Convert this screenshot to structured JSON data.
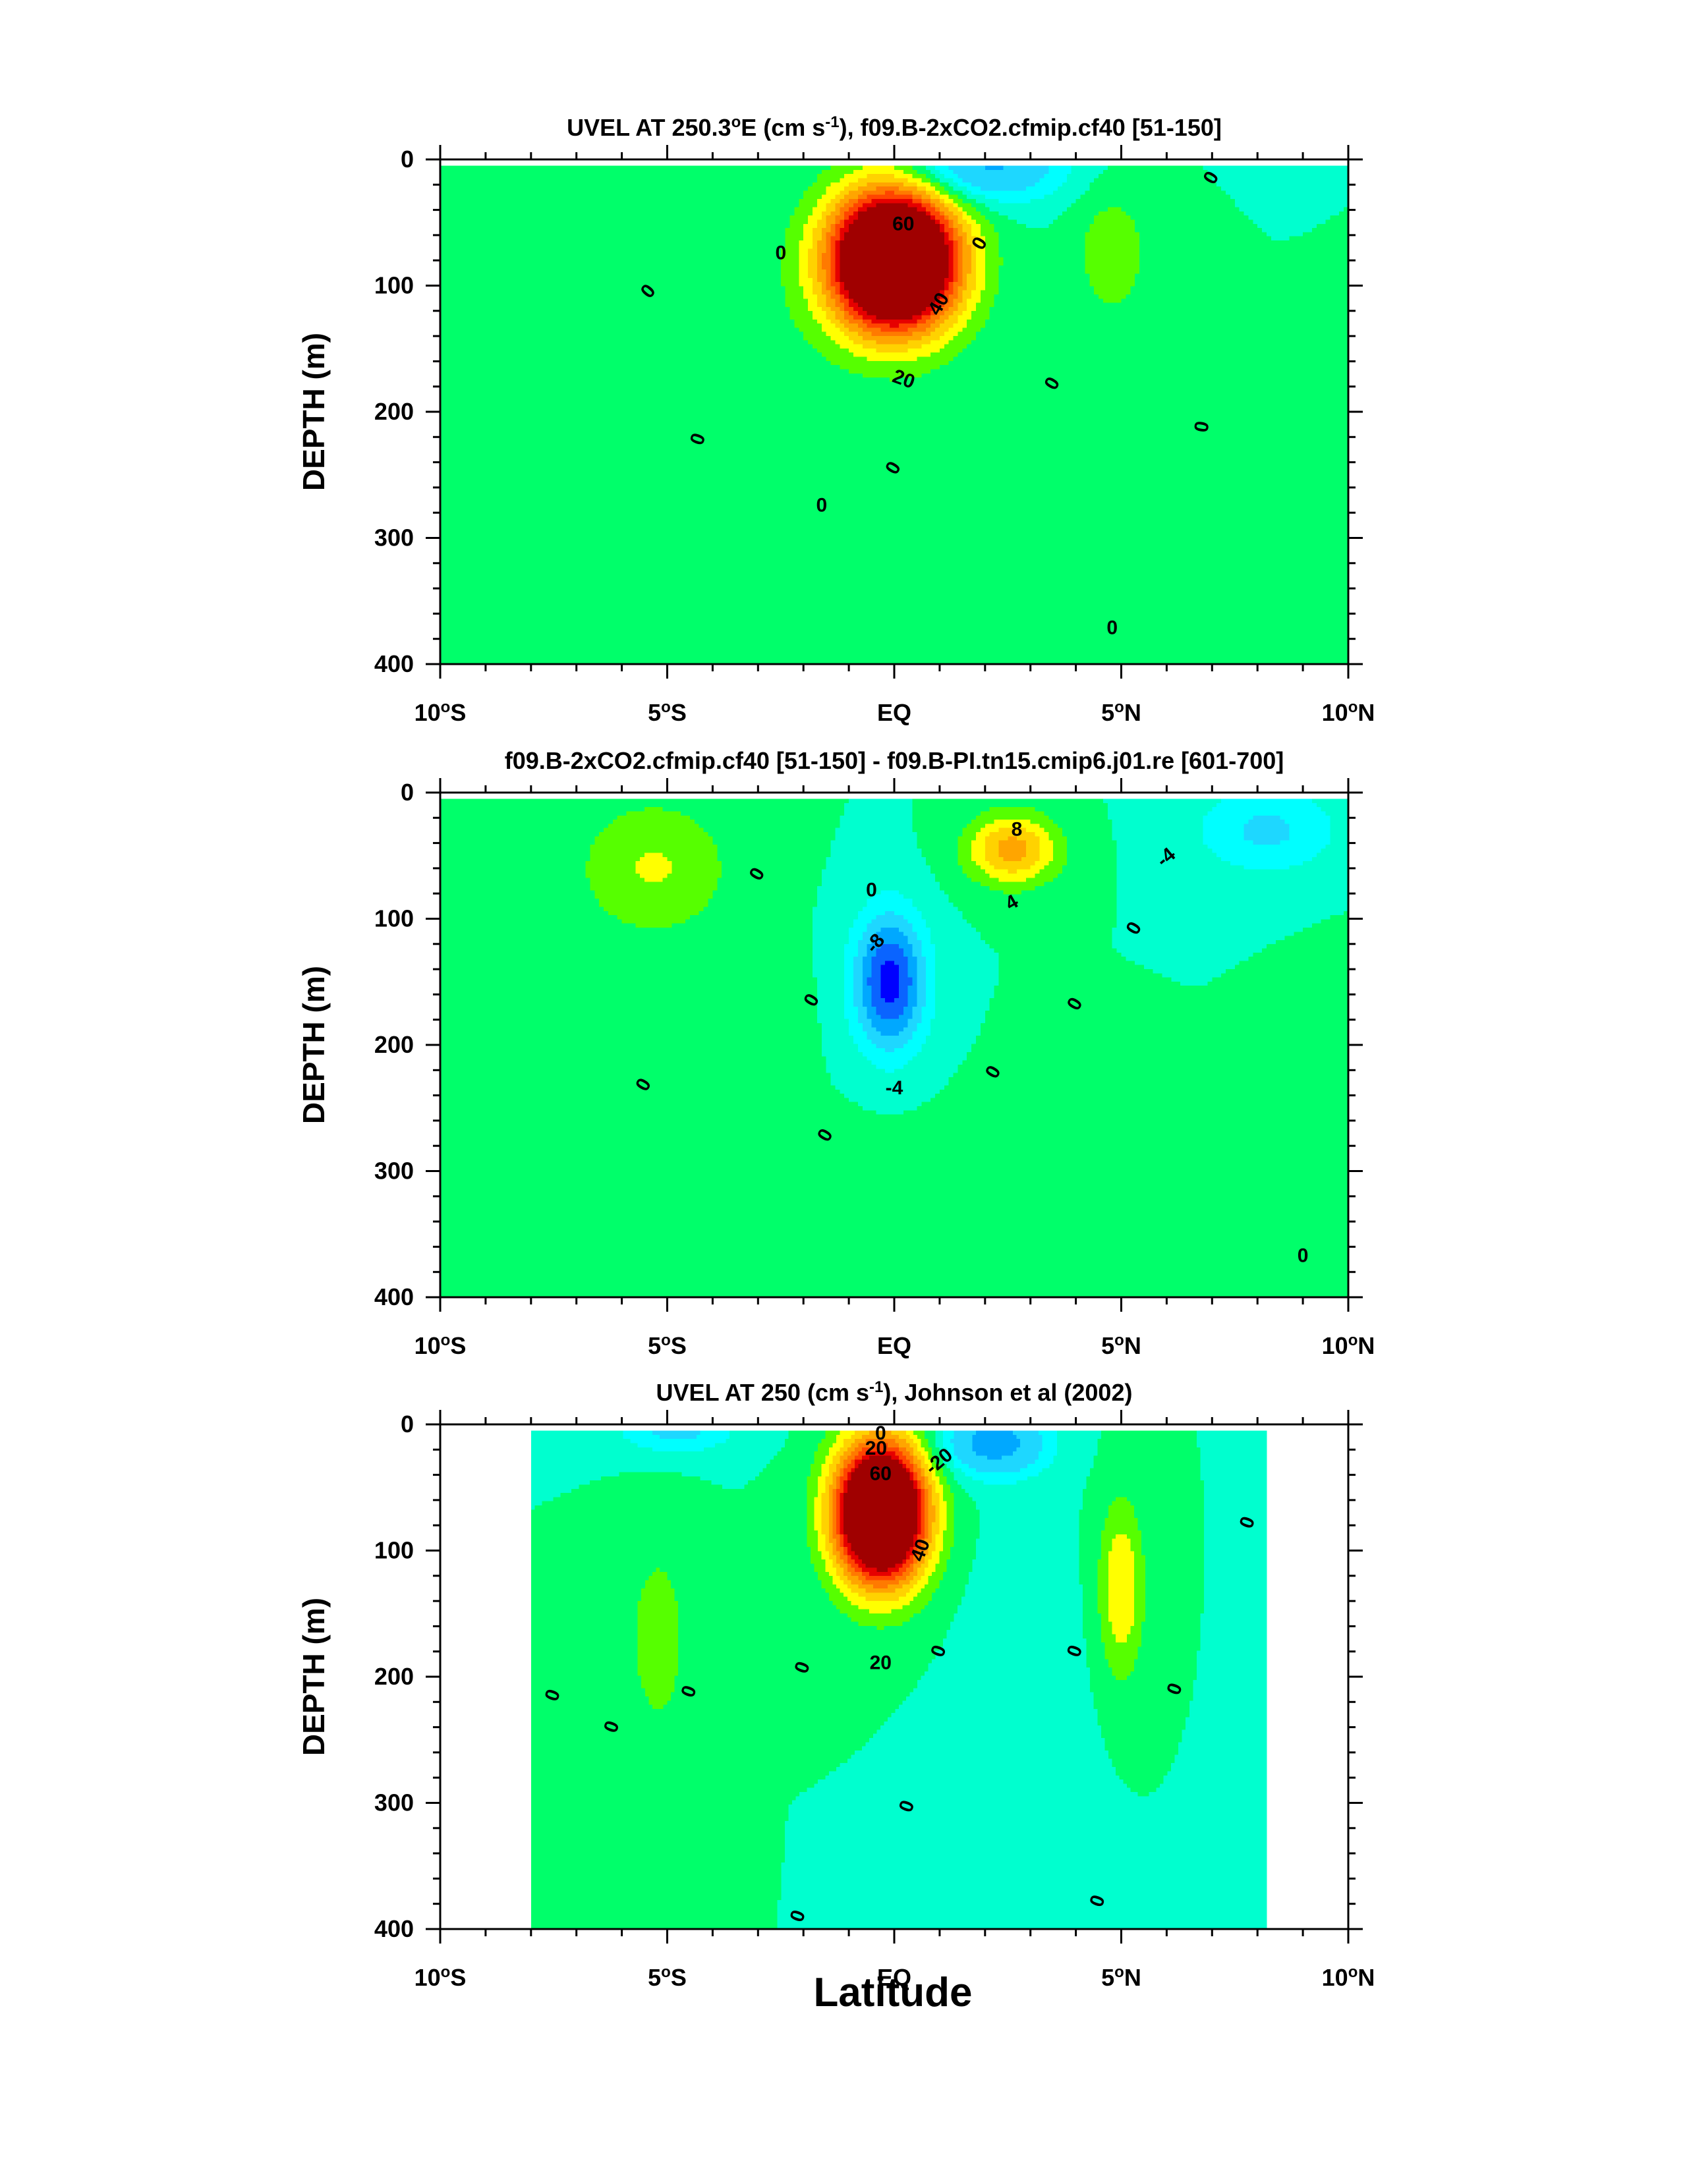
{
  "figure": {
    "xlabel": "Latitude"
  },
  "colors": {
    "palette": [
      "#00009e",
      "#0000ff",
      "#0a64ff",
      "#00a8ff",
      "#1ed7ff",
      "#00ffff",
      "#00ffcf",
      "#00ff6a",
      "#56ff00",
      "#ffff00",
      "#ffd200",
      "#ffa500",
      "#ff7a00",
      "#ff4500",
      "#e60000",
      "#a00000"
    ]
  },
  "chart_data": [
    {
      "type": "contour",
      "title_parts": [
        "UVEL AT 250.3",
        "o",
        "E (cm s",
        "-1",
        "), f09.B-2xCO2.cfmip.cf40 [51-150]"
      ],
      "ylabel": "DEPTH (m)",
      "xlim": [
        -10,
        10
      ],
      "ylim": [
        400,
        0
      ],
      "xticks": [
        -10,
        -5,
        0,
        5,
        10
      ],
      "xtick_labels": [
        [
          "10",
          "o",
          "S"
        ],
        [
          "5",
          "o",
          "S"
        ],
        [
          "EQ",
          "",
          ""
        ],
        [
          "5",
          "o",
          "N"
        ],
        [
          "10",
          "o",
          "N"
        ]
      ],
      "yticks": [
        0,
        100,
        200,
        300,
        400
      ],
      "ytick_labels": [
        "0",
        "100",
        "200",
        "300",
        "400"
      ],
      "contour_interval": 5,
      "levels": [
        -30,
        -20,
        -10,
        -5,
        0,
        5,
        10,
        15,
        20,
        25,
        30,
        35,
        40,
        45,
        50,
        55,
        60,
        65,
        70,
        75,
        80
      ],
      "data_extent": [
        [
          -10,
          10
        ],
        [
          5,
          400
        ]
      ],
      "features": [
        {
          "kind": "core",
          "lat": 0.0,
          "depth": 80,
          "peak": 84,
          "lat_width": 1.4,
          "depth_width": 55
        },
        {
          "kind": "westward",
          "lat": 2.0,
          "depth": 5,
          "peak": -22,
          "lat_width": 1.6,
          "depth_width": 28
        },
        {
          "kind": "eastward",
          "lat": 4.8,
          "depth": 75,
          "peak": 9,
          "lat_width": 0.8,
          "depth_width": 50
        },
        {
          "kind": "eastward",
          "lat": -4.5,
          "depth": 200,
          "peak": 4,
          "lat_width": 3.0,
          "depth_width": 150
        },
        {
          "kind": "eastward",
          "lat": 0.5,
          "depth": 380,
          "peak": 4,
          "lat_width": 2.0,
          "depth_width": 120
        }
      ],
      "contour_labels": [
        {
          "text": "60",
          "lat": 0.2,
          "depth": 52,
          "rot": 0
        },
        {
          "text": "40",
          "lat": 1.0,
          "depth": 115,
          "rot": -60
        },
        {
          "text": "20",
          "lat": 0.2,
          "depth": 175,
          "rot": 20
        },
        {
          "text": "0",
          "lat": 7.0,
          "depth": 15,
          "rot": -60
        },
        {
          "text": "0",
          "lat": -5.4,
          "depth": 105,
          "rot": -50
        },
        {
          "text": "0",
          "lat": -2.5,
          "depth": 75,
          "rot": 0
        },
        {
          "text": "0",
          "lat": 1.9,
          "depth": 67,
          "rot": -60
        },
        {
          "text": "0",
          "lat": 3.5,
          "depth": 178,
          "rot": -60
        },
        {
          "text": "0",
          "lat": -4.3,
          "depth": 222,
          "rot": -70
        },
        {
          "text": "0",
          "lat": 6.8,
          "depth": 212,
          "rot": -80
        },
        {
          "text": "0",
          "lat": 0.0,
          "depth": 245,
          "rot": -60
        },
        {
          "text": "0",
          "lat": -1.6,
          "depth": 275,
          "rot": 0
        },
        {
          "text": "0",
          "lat": 4.8,
          "depth": 372,
          "rot": 0
        }
      ]
    },
    {
      "type": "contour",
      "title_parts": [
        "f09.B-2xCO2.cfmip.cf40 [51-150] - f09.B-PI.tn15.cmip6.j01.re [601-700]"
      ],
      "ylabel": "DEPTH (m)",
      "xlim": [
        -10,
        10
      ],
      "ylim": [
        400,
        0
      ],
      "xticks": [
        -10,
        -5,
        0,
        5,
        10
      ],
      "xtick_labels": [
        [
          "10",
          "o",
          "S"
        ],
        [
          "5",
          "o",
          "S"
        ],
        [
          "EQ",
          "",
          ""
        ],
        [
          "5",
          "o",
          "N"
        ],
        [
          "10",
          "o",
          "N"
        ]
      ],
      "yticks": [
        0,
        100,
        200,
        300,
        400
      ],
      "ytick_labels": [
        "0",
        "100",
        "200",
        "300",
        "400"
      ],
      "contour_interval": 2,
      "levels": [
        -12,
        -10,
        -8,
        -6,
        -4,
        -2,
        0,
        2,
        4,
        6,
        8,
        10,
        12,
        14,
        16
      ],
      "data_extent": [
        [
          -10,
          10
        ],
        [
          5,
          400
        ]
      ],
      "features": [
        {
          "kind": "eastward",
          "lat": 2.6,
          "depth": 45,
          "peak": 9,
          "lat_width": 1.0,
          "depth_width": 28
        },
        {
          "kind": "westward",
          "lat": -0.1,
          "depth": 150,
          "peak": -11,
          "lat_width": 0.8,
          "depth_width": 55
        },
        {
          "kind": "eastward",
          "lat": -5.3,
          "depth": 60,
          "peak": 4.2,
          "lat_width": 1.7,
          "depth_width": 55
        },
        {
          "kind": "westward",
          "lat": 8.2,
          "depth": 30,
          "peak": -4.5,
          "lat_width": 1.6,
          "depth_width": 35
        },
        {
          "kind": "eastward",
          "lat": 0.0,
          "depth": 370,
          "peak": 1.5,
          "lat_width": 2.5,
          "depth_width": 90
        },
        {
          "kind": "eastward",
          "lat": -2.2,
          "depth": 200,
          "peak": 1.2,
          "lat_width": 0.4,
          "depth_width": 60
        },
        {
          "kind": "eastward",
          "lat": 10.0,
          "depth": 320,
          "peak": 1.5,
          "lat_width": 1.0,
          "depth_width": 120
        }
      ],
      "contour_labels": [
        {
          "text": "8",
          "lat": 2.7,
          "depth": 30,
          "rot": 0
        },
        {
          "text": "4",
          "lat": 2.6,
          "depth": 88,
          "rot": -30
        },
        {
          "text": "0",
          "lat": -0.5,
          "depth": 78,
          "rot": 0
        },
        {
          "text": "-8",
          "lat": -0.4,
          "depth": 120,
          "rot": -50
        },
        {
          "text": "-4",
          "lat": 0.0,
          "depth": 235,
          "rot": 0
        },
        {
          "text": "-4",
          "lat": 6.0,
          "depth": 52,
          "rot": -40
        },
        {
          "text": "0",
          "lat": -3.0,
          "depth": 65,
          "rot": -60
        },
        {
          "text": "0",
          "lat": -5.5,
          "depth": 232,
          "rot": -60
        },
        {
          "text": "0",
          "lat": -1.8,
          "depth": 165,
          "rot": -60
        },
        {
          "text": "0",
          "lat": 2.2,
          "depth": 222,
          "rot": -60
        },
        {
          "text": "0",
          "lat": 4.0,
          "depth": 168,
          "rot": -60
        },
        {
          "text": "0",
          "lat": 5.3,
          "depth": 108,
          "rot": -60
        },
        {
          "text": "0",
          "lat": -1.5,
          "depth": 272,
          "rot": -60
        },
        {
          "text": "0",
          "lat": 9.0,
          "depth": 368,
          "rot": 0
        }
      ]
    },
    {
      "type": "contour",
      "title_parts": [
        "UVEL AT 250 (cm s",
        "-1",
        "), Johnson et al (2002)"
      ],
      "ylabel": "DEPTH (m)",
      "xlim": [
        -10,
        10
      ],
      "ylim": [
        400,
        0
      ],
      "xticks": [
        -10,
        -5,
        0,
        5,
        10
      ],
      "xtick_labels": [
        [
          "10",
          "o",
          "S"
        ],
        [
          "5",
          "o",
          "S"
        ],
        [
          "EQ",
          "",
          ""
        ],
        [
          "5",
          "o",
          "N"
        ],
        [
          "10",
          "o",
          "N"
        ]
      ],
      "yticks": [
        0,
        100,
        200,
        300,
        400
      ],
      "ytick_labels": [
        "0",
        "100",
        "200",
        "300",
        "400"
      ],
      "contour_interval": 5,
      "levels": [
        -30,
        -20,
        -10,
        -5,
        0,
        5,
        10,
        15,
        20,
        25,
        30,
        35,
        40,
        45,
        50,
        55,
        60,
        65,
        70,
        75,
        80
      ],
      "data_extent": [
        [
          -8,
          8.2
        ],
        [
          5,
          400
        ]
      ],
      "features": [
        {
          "kind": "core",
          "lat": -0.3,
          "depth": 70,
          "peak": 80,
          "lat_width": 1.0,
          "depth_width": 55
        },
        {
          "kind": "westward",
          "lat": 2.2,
          "depth": 15,
          "peak": -25,
          "lat_width": 1.1,
          "depth_width": 25
        },
        {
          "kind": "westward",
          "lat": -4.8,
          "depth": 5,
          "peak": -12,
          "lat_width": 1.3,
          "depth_width": 18
        },
        {
          "kind": "eastward",
          "lat": 5.0,
          "depth": 130,
          "peak": 15,
          "lat_width": 0.5,
          "depth_width": 70
        },
        {
          "kind": "eastward",
          "lat": -5.2,
          "depth": 170,
          "peak": 8,
          "lat_width": 0.7,
          "depth_width": 80
        },
        {
          "kind": "westward",
          "lat": 2.8,
          "depth": 250,
          "peak": -4,
          "lat_width": 1.2,
          "depth_width": 150
        }
      ],
      "contour_labels": [
        {
          "text": "0",
          "lat": -0.3,
          "depth": 8,
          "rot": 0
        },
        {
          "text": "20",
          "lat": -0.4,
          "depth": 20,
          "rot": 0
        },
        {
          "text": "60",
          "lat": -0.3,
          "depth": 40,
          "rot": 0
        },
        {
          "text": "-20",
          "lat": 1.0,
          "depth": 30,
          "rot": -40
        },
        {
          "text": "40",
          "lat": 0.6,
          "depth": 100,
          "rot": -70
        },
        {
          "text": "20",
          "lat": -0.3,
          "depth": 190,
          "rot": 0
        },
        {
          "text": "0",
          "lat": 7.8,
          "depth": 78,
          "rot": -70
        },
        {
          "text": "0",
          "lat": -2.0,
          "depth": 193,
          "rot": -70
        },
        {
          "text": "0",
          "lat": 1.0,
          "depth": 180,
          "rot": -70
        },
        {
          "text": "0",
          "lat": 4.0,
          "depth": 180,
          "rot": -70
        },
        {
          "text": "0",
          "lat": 6.2,
          "depth": 210,
          "rot": -70
        },
        {
          "text": "0",
          "lat": -7.5,
          "depth": 215,
          "rot": -70
        },
        {
          "text": "0",
          "lat": -4.5,
          "depth": 212,
          "rot": -70
        },
        {
          "text": "0",
          "lat": -6.2,
          "depth": 240,
          "rot": -70
        },
        {
          "text": "0",
          "lat": 0.3,
          "depth": 303,
          "rot": -70
        },
        {
          "text": "0",
          "lat": 4.5,
          "depth": 378,
          "rot": -70
        },
        {
          "text": "0",
          "lat": -2.1,
          "depth": 390,
          "rot": -70
        }
      ]
    }
  ]
}
